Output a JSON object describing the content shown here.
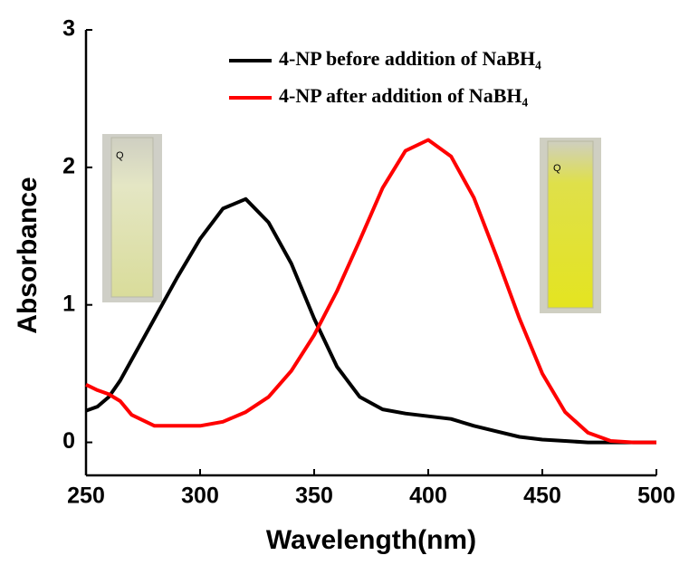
{
  "chart_data": {
    "type": "line",
    "xlabel": "Wavelength(nm)",
    "ylabel": "Absorbance",
    "x": [
      250,
      255,
      260,
      265,
      270,
      280,
      290,
      300,
      310,
      320,
      330,
      340,
      350,
      360,
      370,
      380,
      390,
      400,
      410,
      420,
      430,
      440,
      450,
      460,
      470,
      480,
      490,
      500
    ],
    "series": [
      {
        "name": "4-NP before addition of NaBH₄",
        "color": "#000000",
        "values": [
          0.23,
          0.26,
          0.33,
          0.45,
          0.6,
          0.9,
          1.2,
          1.48,
          1.7,
          1.77,
          1.6,
          1.3,
          0.9,
          0.55,
          0.33,
          0.24,
          0.21,
          0.19,
          0.17,
          0.12,
          0.08,
          0.04,
          0.02,
          0.01,
          0,
          0,
          0,
          0
        ]
      },
      {
        "name": "4-NP after addition of NaBH₄",
        "color": "#ff0000",
        "values": [
          0.42,
          0.38,
          0.35,
          0.3,
          0.2,
          0.12,
          0.12,
          0.12,
          0.15,
          0.22,
          0.33,
          0.52,
          0.78,
          1.1,
          1.47,
          1.85,
          2.12,
          2.2,
          2.08,
          1.78,
          1.35,
          0.9,
          0.5,
          0.22,
          0.07,
          0.01,
          0,
          0
        ]
      }
    ],
    "xlim": [
      250,
      500
    ],
    "ylim": [
      -0.24,
      3
    ],
    "xticks": [
      250,
      300,
      350,
      400,
      450,
      500
    ],
    "yticks": [
      0,
      1,
      2,
      3
    ],
    "legend": "upper-right"
  }
}
